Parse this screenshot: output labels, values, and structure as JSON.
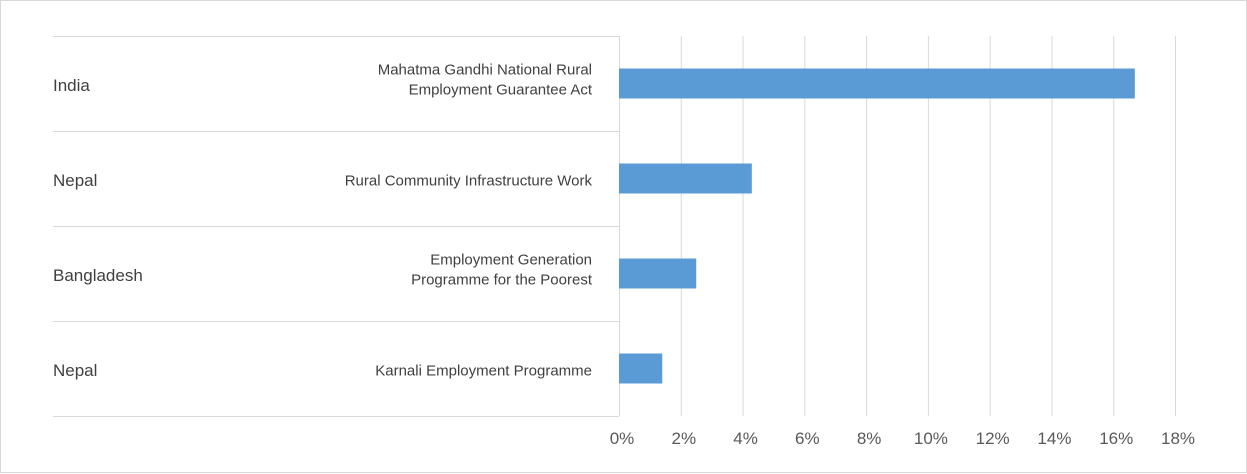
{
  "chart_data": {
    "type": "bar",
    "orientation": "horizontal",
    "title": "",
    "xlabel": "",
    "ylabel": "",
    "categories": [
      {
        "country": "India",
        "programme": [
          "Mahatma Gandhi National Rural",
          "Employment Guarantee Act"
        ]
      },
      {
        "country": "Nepal",
        "programme": [
          "Rural Community Infrastructure Work"
        ]
      },
      {
        "country": "Bangladesh",
        "programme": [
          "Employment Generation",
          "Programme for the Poorest"
        ]
      },
      {
        "country": "Nepal",
        "programme": [
          "Karnali Employment Programme"
        ]
      }
    ],
    "values": [
      16.7,
      4.3,
      2.5,
      1.4
    ],
    "xlim": [
      0,
      18
    ],
    "xticks": [
      0,
      2,
      4,
      6,
      8,
      10,
      12,
      14,
      16,
      18
    ],
    "tick_labels": [
      "0%",
      "2%",
      "4%",
      "6%",
      "8%",
      "10%",
      "12%",
      "14%",
      "16%",
      "18%"
    ],
    "grid": "vertical",
    "legend": "none",
    "bar_color": "#5b9bd5",
    "gridline_color": "#d9d9d9"
  }
}
